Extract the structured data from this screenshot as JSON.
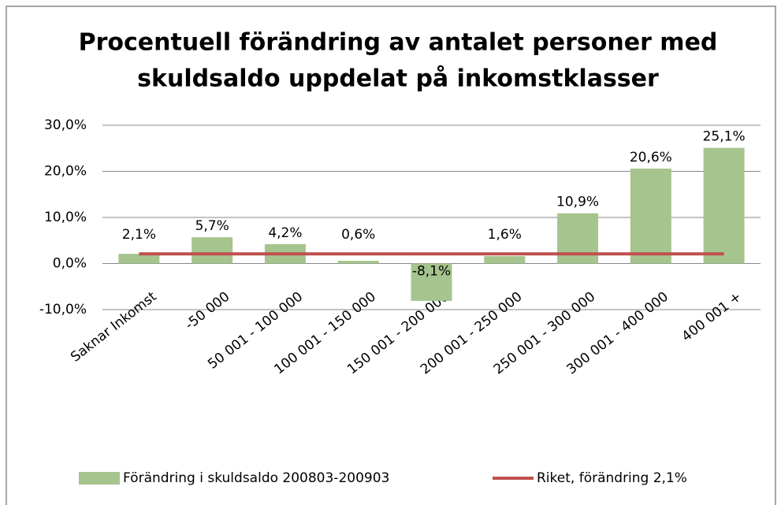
{
  "chart_data": {
    "type": "bar",
    "title": [
      "Procentuell förändring av antalet personer med",
      "skuldsaldo uppdelat på inkomstklasser"
    ],
    "categories": [
      "Saknar Inkomst",
      "-50 000",
      "50 001 - 100 000",
      "100 001 - 150 000",
      "150 001 - 200 000",
      "200 001 - 250 000",
      "250 001 - 300 000",
      "300 001 - 400 000",
      "400 001 +"
    ],
    "series": [
      {
        "name": "Förändring i skuldsaldo  200803-200903",
        "type": "bar",
        "color": "#a6c48e",
        "values": [
          2.1,
          5.7,
          4.2,
          0.6,
          -8.1,
          1.6,
          10.9,
          20.6,
          25.1
        ],
        "value_labels": [
          "2,1%",
          "5,7%",
          "4,2%",
          "0,6%",
          "-8,1%",
          "1,6%",
          "10,9%",
          "20,6%",
          "25,1%"
        ]
      },
      {
        "name": "Riket, förändring 2,1%",
        "type": "line",
        "color": "#c0504d",
        "values": [
          2.1,
          2.1,
          2.1,
          2.1,
          2.1,
          2.1,
          2.1,
          2.1,
          2.1
        ]
      }
    ],
    "ylim": [
      -10,
      30
    ],
    "yticks": [
      {
        "value": -10,
        "label": "-10,0%"
      },
      {
        "value": 0,
        "label": "0,0%"
      },
      {
        "value": 10,
        "label": "10,0%"
      },
      {
        "value": 20,
        "label": "20,0%"
      },
      {
        "value": 30,
        "label": "30,0%"
      }
    ],
    "grid": true,
    "legend": "bottom"
  }
}
